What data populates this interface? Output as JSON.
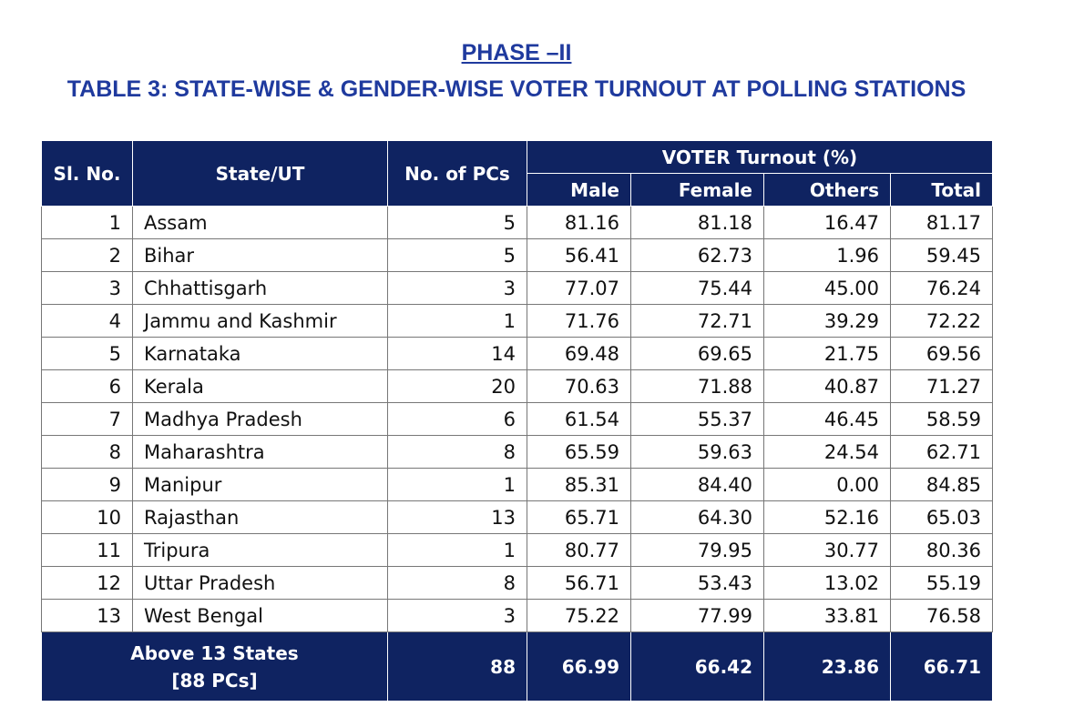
{
  "header": {
    "phase": "PHASE –II",
    "title": "TABLE 3: STATE-WISE & GENDER-WISE VOTER TURNOUT AT POLLING STATIONS"
  },
  "table": {
    "columns": {
      "sl": "Sl. No.",
      "state": "State/UT",
      "pcs": "No. of PCs",
      "group": "VOTER Turnout (%)",
      "male": "Male",
      "female": "Female",
      "others": "Others",
      "total": "Total"
    },
    "rows": [
      [
        "1",
        "Assam",
        "5",
        "81.16",
        "81.18",
        "16.47",
        "81.17"
      ],
      [
        "2",
        "Bihar",
        "5",
        "56.41",
        "62.73",
        "1.96",
        "59.45"
      ],
      [
        "3",
        "Chhattisgarh",
        "3",
        "77.07",
        "75.44",
        "45.00",
        "76.24"
      ],
      [
        "4",
        "Jammu and Kashmir",
        "1",
        "71.76",
        "72.71",
        "39.29",
        "72.22"
      ],
      [
        "5",
        "Karnataka",
        "14",
        "69.48",
        "69.65",
        "21.75",
        "69.56"
      ],
      [
        "6",
        "Kerala",
        "20",
        "70.63",
        "71.88",
        "40.87",
        "71.27"
      ],
      [
        "7",
        "Madhya Pradesh",
        "6",
        "61.54",
        "55.37",
        "46.45",
        "58.59"
      ],
      [
        "8",
        "Maharashtra",
        "8",
        "65.59",
        "59.63",
        "24.54",
        "62.71"
      ],
      [
        "9",
        "Manipur",
        "1",
        "85.31",
        "84.40",
        "0.00",
        "84.85"
      ],
      [
        "10",
        "Rajasthan",
        "13",
        "65.71",
        "64.30",
        "52.16",
        "65.03"
      ],
      [
        "11",
        "Tripura",
        "1",
        "80.77",
        "79.95",
        "30.77",
        "80.36"
      ],
      [
        "12",
        "Uttar Pradesh",
        "8",
        "56.71",
        "53.43",
        "13.02",
        "55.19"
      ],
      [
        "13",
        "West Bengal",
        "3",
        "75.22",
        "77.99",
        "33.81",
        "76.58"
      ]
    ],
    "footer": {
      "label": "Above 13 States",
      "sublabel": "[88 PCs]",
      "values": [
        "88",
        "66.99",
        "66.42",
        "23.86",
        "66.71"
      ]
    }
  }
}
